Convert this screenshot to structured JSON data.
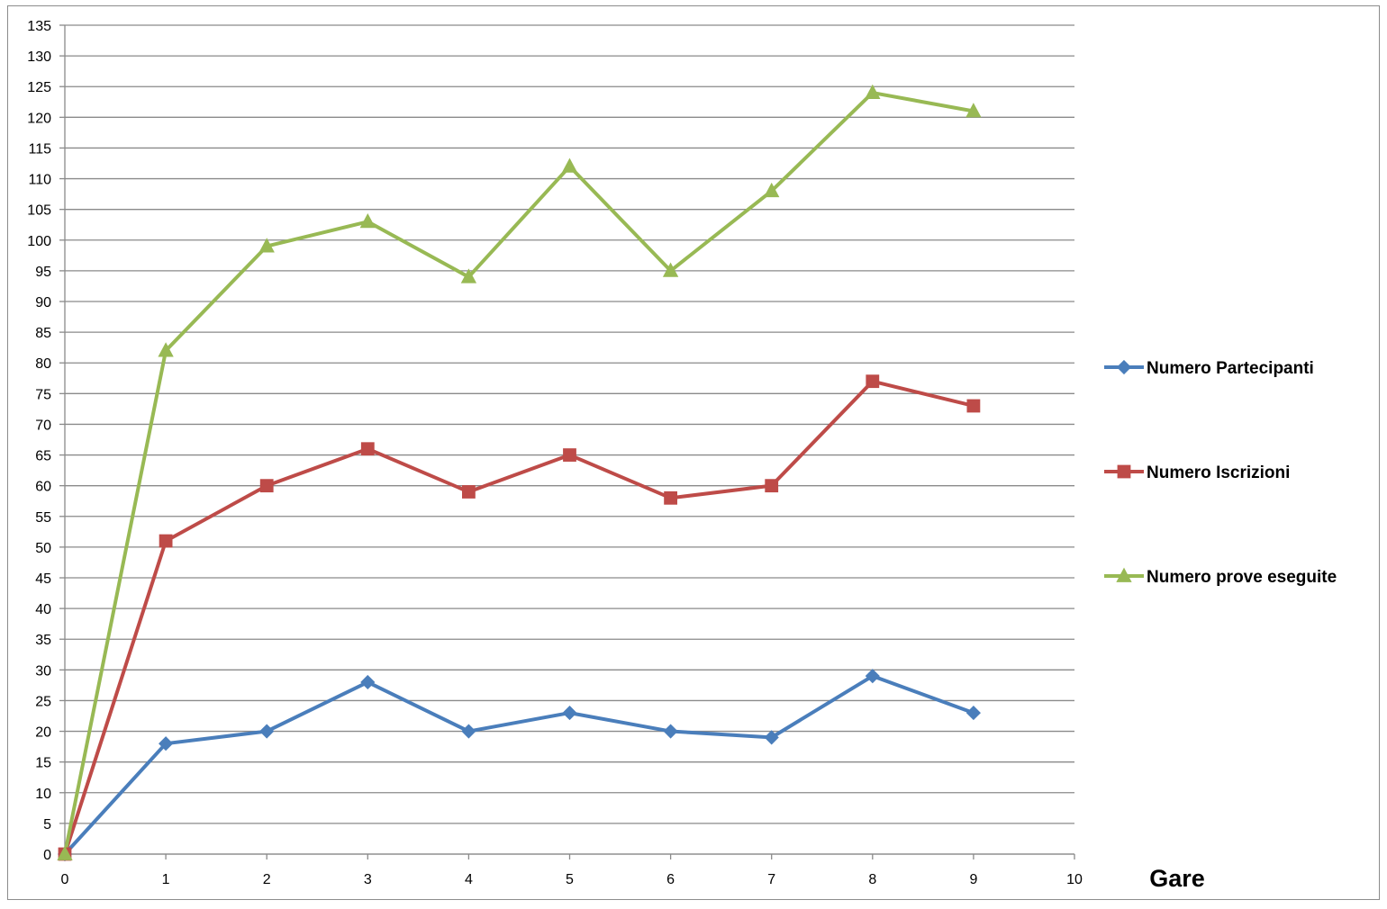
{
  "chart_data": {
    "type": "line",
    "title": "",
    "xlabel": "Gare",
    "ylabel": "",
    "xlim": [
      0,
      10
    ],
    "ylim": [
      0,
      135
    ],
    "xticks": [
      0,
      1,
      2,
      3,
      4,
      5,
      6,
      7,
      8,
      9,
      10
    ],
    "yticks": [
      0,
      5,
      10,
      15,
      20,
      25,
      30,
      35,
      40,
      45,
      50,
      55,
      60,
      65,
      70,
      75,
      80,
      85,
      90,
      95,
      100,
      105,
      110,
      115,
      120,
      125,
      130,
      135
    ],
    "grid": "horizontal",
    "legend_position": "right",
    "x": [
      0,
      1,
      2,
      3,
      4,
      5,
      6,
      7,
      8,
      9
    ],
    "series": [
      {
        "name": "Numero Partecipanti",
        "color": "#4a7ebb",
        "marker": "diamond",
        "values": [
          0,
          18,
          20,
          28,
          20,
          23,
          20,
          19,
          29,
          23
        ]
      },
      {
        "name": "Numero Iscrizioni",
        "color": "#be4b48",
        "marker": "square",
        "values": [
          0,
          51,
          60,
          66,
          59,
          65,
          58,
          60,
          77,
          73
        ]
      },
      {
        "name": "Numero prove eseguite",
        "color": "#98b954",
        "marker": "triangle",
        "values": [
          0,
          82,
          99,
          103,
          94,
          112,
          95,
          108,
          124,
          121
        ]
      }
    ]
  }
}
